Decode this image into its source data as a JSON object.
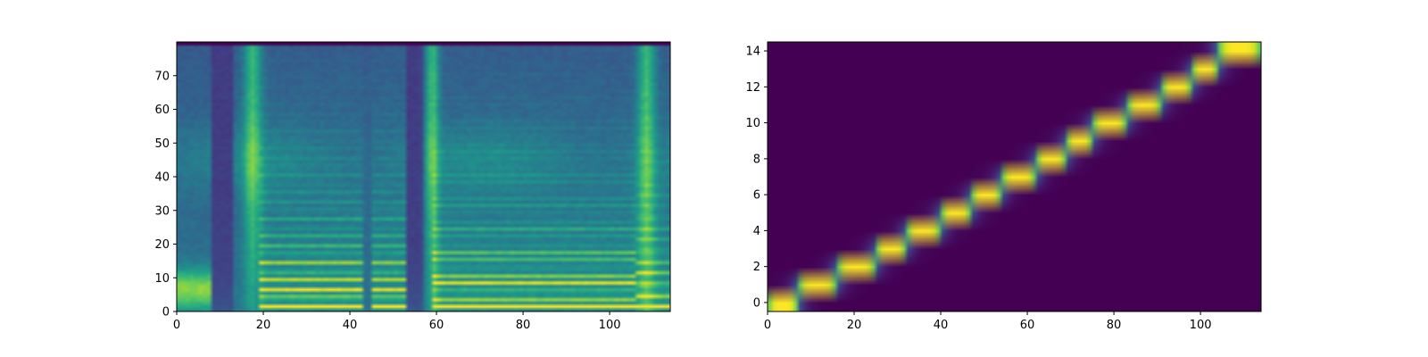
{
  "figure": {
    "background": "#ffffff",
    "axis_color": "#000000",
    "colormap": "viridis"
  },
  "chart_data": [
    {
      "type": "heatmap",
      "name": "mel-spectrogram",
      "title": "",
      "xlabel": "",
      "ylabel": "",
      "xlim": [
        0,
        114
      ],
      "ylim": [
        0,
        80
      ],
      "origin": "lower",
      "frames": 114,
      "bins": 80,
      "xticks": [
        0,
        20,
        40,
        60,
        80,
        100
      ],
      "yticks": [
        0,
        10,
        20,
        30,
        40,
        50,
        60,
        70
      ],
      "harmonic_regions": [
        {
          "start": 0,
          "end": 8,
          "f0": 0,
          "strength": 0.65
        },
        {
          "start": 19,
          "end": 43,
          "f0": 2.6,
          "strength": 1.0
        },
        {
          "start": 45,
          "end": 53,
          "f0": 2.6,
          "strength": 0.95
        },
        {
          "start": 59,
          "end": 106,
          "f0": 2.3,
          "strength": 0.92
        },
        {
          "start": 106,
          "end": 114,
          "f0": 3.3,
          "strength": 0.7
        }
      ],
      "silence_columns": [
        {
          "start": 8,
          "end": 13
        },
        {
          "start": 53,
          "end": 57
        }
      ],
      "fricative_columns": [
        {
          "center": 17,
          "width": 2.0
        },
        {
          "center": 58.5,
          "width": 1.5
        },
        {
          "center": 108,
          "width": 2.0
        }
      ],
      "notes": ""
    },
    {
      "type": "heatmap",
      "name": "alignment",
      "title": "",
      "xlabel": "",
      "ylabel": "",
      "xlim": [
        0,
        114
      ],
      "ylim": [
        -0.5,
        14.5
      ],
      "origin": "lower",
      "frames": 114,
      "rows": 15,
      "xticks": [
        0,
        20,
        40,
        60,
        80,
        100
      ],
      "yticks": [
        0,
        2,
        4,
        6,
        8,
        10,
        12,
        14
      ],
      "segments": [
        {
          "row": 0,
          "start": 0,
          "end": 7
        },
        {
          "row": 1,
          "start": 7,
          "end": 16
        },
        {
          "row": 2,
          "start": 16,
          "end": 25
        },
        {
          "row": 3,
          "start": 25,
          "end": 32
        },
        {
          "row": 4,
          "start": 32,
          "end": 40
        },
        {
          "row": 5,
          "start": 40,
          "end": 47
        },
        {
          "row": 6,
          "start": 47,
          "end": 54
        },
        {
          "row": 7,
          "start": 54,
          "end": 62
        },
        {
          "row": 8,
          "start": 62,
          "end": 69
        },
        {
          "row": 9,
          "start": 69,
          "end": 75
        },
        {
          "row": 10,
          "start": 75,
          "end": 83
        },
        {
          "row": 11,
          "start": 83,
          "end": 91
        },
        {
          "row": 12,
          "start": 91,
          "end": 98
        },
        {
          "row": 13,
          "start": 98,
          "end": 104
        },
        {
          "row": 14,
          "start": 104,
          "end": 114
        }
      ]
    }
  ]
}
